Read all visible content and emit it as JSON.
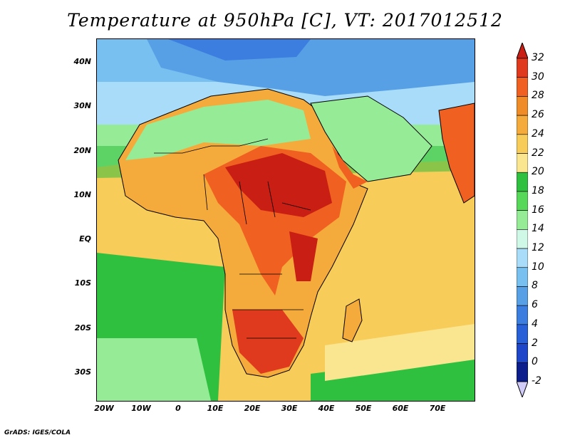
{
  "title": "Temperature at 950hPa [C], VT: 2017012512",
  "credit": "GrADS: IGES/COLA",
  "map": {
    "lat_labels": [
      "40N",
      "30N",
      "20N",
      "10N",
      "EQ",
      "10S",
      "20S",
      "30S"
    ],
    "lon_labels": [
      "20W",
      "10W",
      "0",
      "10E",
      "20E",
      "30E",
      "40E",
      "50E",
      "60E",
      "70E"
    ]
  },
  "colorbar": {
    "labels": [
      "32",
      "30",
      "28",
      "26",
      "24",
      "22",
      "20",
      "18",
      "16",
      "14",
      "12",
      "10",
      "8",
      "6",
      "4",
      "2",
      "0",
      "-2"
    ],
    "colors": [
      "#c81e14",
      "#e03a1e",
      "#f06020",
      "#f08c28",
      "#f5aa3c",
      "#f8cc58",
      "#fae690",
      "#30c040",
      "#58d858",
      "#96ec96",
      "#d0f8e6",
      "#a8dcf8",
      "#78c0f0",
      "#58a0e6",
      "#3c7ee0",
      "#2860d8",
      "#1e46c8",
      "#0c1e8c"
    ],
    "top_arrow_color": "#c81e14",
    "bottom_arrow_color": "#d2ccf8"
  }
}
